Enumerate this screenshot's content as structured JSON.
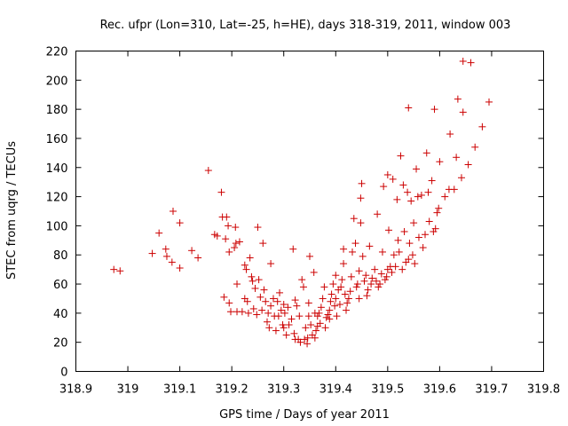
{
  "chart_data": {
    "type": "scatter",
    "title": "Rec. ufpr (Lon=310, Lat=-25, h=HE), days 318-319, 2011, window 003",
    "xlabel": "GPS time / Days of year 2011",
    "ylabel": "STEC from uqrg / TECUs",
    "xlim": [
      318.9,
      319.8
    ],
    "ylim": [
      0,
      220
    ],
    "x_ticks": [
      "318.9",
      "319",
      "319.1",
      "319.2",
      "319.3",
      "319.4",
      "319.5",
      "319.6",
      "319.7",
      "319.8"
    ],
    "y_ticks": [
      "0",
      "20",
      "40",
      "60",
      "80",
      "100",
      "120",
      "140",
      "160",
      "180",
      "200",
      "220"
    ],
    "marker": "+",
    "marker_color": "#cc0000",
    "grid": false,
    "series": [
      {
        "points": [
          [
            318.973,
            70
          ],
          [
            318.985,
            69
          ],
          [
            319.047,
            81
          ],
          [
            319.06,
            95
          ],
          [
            319.073,
            84
          ],
          [
            319.075,
            79
          ],
          [
            319.085,
            75
          ],
          [
            319.087,
            110
          ],
          [
            319.1,
            102
          ],
          [
            319.1,
            71
          ],
          [
            319.123,
            83
          ],
          [
            319.135,
            78
          ],
          [
            319.155,
            138
          ],
          [
            319.167,
            94
          ],
          [
            319.172,
            93
          ],
          [
            319.18,
            123
          ],
          [
            319.182,
            106
          ],
          [
            319.185,
            51
          ],
          [
            319.188,
            91
          ],
          [
            319.19,
            106
          ],
          [
            319.193,
            100
          ],
          [
            319.195,
            82
          ],
          [
            319.195,
            47
          ],
          [
            319.198,
            41
          ],
          [
            319.205,
            85
          ],
          [
            319.207,
            99
          ],
          [
            319.208,
            88
          ],
          [
            319.21,
            60
          ],
          [
            319.21,
            41
          ],
          [
            319.215,
            89
          ],
          [
            319.22,
            41
          ],
          [
            319.225,
            73
          ],
          [
            319.225,
            50
          ],
          [
            319.228,
            70
          ],
          [
            319.23,
            48
          ],
          [
            319.232,
            40
          ],
          [
            319.235,
            78
          ],
          [
            319.238,
            65
          ],
          [
            319.24,
            62
          ],
          [
            319.242,
            43
          ],
          [
            319.245,
            57
          ],
          [
            319.248,
            39
          ],
          [
            319.25,
            99
          ],
          [
            319.252,
            63
          ],
          [
            319.255,
            51
          ],
          [
            319.258,
            42
          ],
          [
            319.26,
            88
          ],
          [
            319.262,
            56
          ],
          [
            319.265,
            48
          ],
          [
            319.268,
            34
          ],
          [
            319.27,
            40
          ],
          [
            319.272,
            30
          ],
          [
            319.275,
            45
          ],
          [
            319.275,
            74
          ],
          [
            319.28,
            50
          ],
          [
            319.282,
            38
          ],
          [
            319.285,
            28
          ],
          [
            319.288,
            48
          ],
          [
            319.29,
            38
          ],
          [
            319.292,
            54
          ],
          [
            319.295,
            42
          ],
          [
            319.298,
            32
          ],
          [
            319.3,
            30
          ],
          [
            319.3,
            46
          ],
          [
            319.302,
            40
          ],
          [
            319.305,
            25
          ],
          [
            319.308,
            44
          ],
          [
            319.31,
            32
          ],
          [
            319.315,
            36
          ],
          [
            319.318,
            84
          ],
          [
            319.32,
            26
          ],
          [
            319.322,
            22
          ],
          [
            319.322,
            49
          ],
          [
            319.325,
            45
          ],
          [
            319.328,
            22
          ],
          [
            319.33,
            38
          ],
          [
            319.332,
            20
          ],
          [
            319.335,
            63
          ],
          [
            319.338,
            58
          ],
          [
            319.34,
            22
          ],
          [
            319.342,
            30
          ],
          [
            319.345,
            19
          ],
          [
            319.346,
            23
          ],
          [
            319.348,
            38
          ],
          [
            319.348,
            47
          ],
          [
            319.35,
            79
          ],
          [
            319.352,
            32
          ],
          [
            319.355,
            25
          ],
          [
            319.358,
            68
          ],
          [
            319.36,
            23
          ],
          [
            319.36,
            40
          ],
          [
            319.362,
            28
          ],
          [
            319.365,
            31
          ],
          [
            319.365,
            38
          ],
          [
            319.368,
            40
          ],
          [
            319.37,
            33
          ],
          [
            319.372,
            44
          ],
          [
            319.375,
            50
          ],
          [
            319.378,
            58
          ],
          [
            319.38,
            30
          ],
          [
            319.382,
            37
          ],
          [
            319.385,
            39
          ],
          [
            319.388,
            36
          ],
          [
            319.388,
            42
          ],
          [
            319.39,
            48
          ],
          [
            319.392,
            53
          ],
          [
            319.395,
            60
          ],
          [
            319.398,
            45
          ],
          [
            319.4,
            50
          ],
          [
            319.4,
            66
          ],
          [
            319.402,
            38
          ],
          [
            319.405,
            56
          ],
          [
            319.408,
            46
          ],
          [
            319.41,
            58
          ],
          [
            319.412,
            63
          ],
          [
            319.415,
            74
          ],
          [
            319.415,
            84
          ],
          [
            319.418,
            53
          ],
          [
            319.42,
            42
          ],
          [
            319.422,
            47
          ],
          [
            319.425,
            50
          ],
          [
            319.428,
            55
          ],
          [
            319.43,
            65
          ],
          [
            319.432,
            82
          ],
          [
            319.435,
            105
          ],
          [
            319.438,
            88
          ],
          [
            319.44,
            58
          ],
          [
            319.442,
            60
          ],
          [
            319.445,
            50
          ],
          [
            319.445,
            69
          ],
          [
            319.448,
            102
          ],
          [
            319.448,
            119
          ],
          [
            319.45,
            129
          ],
          [
            319.452,
            79
          ],
          [
            319.455,
            62
          ],
          [
            319.458,
            66
          ],
          [
            319.46,
            52
          ],
          [
            319.462,
            56
          ],
          [
            319.465,
            86
          ],
          [
            319.468,
            60
          ],
          [
            319.47,
            64
          ],
          [
            319.475,
            70
          ],
          [
            319.478,
            62
          ],
          [
            319.48,
            108
          ],
          [
            319.482,
            58
          ],
          [
            319.485,
            60
          ],
          [
            319.488,
            67
          ],
          [
            319.49,
            82
          ],
          [
            319.492,
            127
          ],
          [
            319.495,
            63
          ],
          [
            319.498,
            65
          ],
          [
            319.5,
            70
          ],
          [
            319.5,
            135
          ],
          [
            319.502,
            97
          ],
          [
            319.505,
            72
          ],
          [
            319.508,
            68
          ],
          [
            319.51,
            132
          ],
          [
            319.512,
            80
          ],
          [
            319.515,
            72
          ],
          [
            319.518,
            118
          ],
          [
            319.52,
            90
          ],
          [
            319.522,
            82
          ],
          [
            319.525,
            148
          ],
          [
            319.528,
            70
          ],
          [
            319.53,
            128
          ],
          [
            319.532,
            96
          ],
          [
            319.535,
            75
          ],
          [
            319.538,
            123
          ],
          [
            319.54,
            77
          ],
          [
            319.54,
            181
          ],
          [
            319.542,
            88
          ],
          [
            319.545,
            117
          ],
          [
            319.548,
            80
          ],
          [
            319.55,
            102
          ],
          [
            319.552,
            74
          ],
          [
            319.555,
            139
          ],
          [
            319.558,
            120
          ],
          [
            319.56,
            92
          ],
          [
            319.565,
            121
          ],
          [
            319.568,
            85
          ],
          [
            319.572,
            94
          ],
          [
            319.575,
            150
          ],
          [
            319.578,
            123
          ],
          [
            319.58,
            103
          ],
          [
            319.585,
            131
          ],
          [
            319.588,
            96
          ],
          [
            319.59,
            180
          ],
          [
            319.592,
            98
          ],
          [
            319.595,
            109
          ],
          [
            319.598,
            112
          ],
          [
            319.6,
            144
          ],
          [
            319.61,
            120
          ],
          [
            319.618,
            125
          ],
          [
            319.62,
            163
          ],
          [
            319.628,
            125
          ],
          [
            319.632,
            147
          ],
          [
            319.635,
            187
          ],
          [
            319.642,
            133
          ],
          [
            319.645,
            178
          ],
          [
            319.645,
            213
          ],
          [
            319.655,
            142
          ],
          [
            319.66,
            212
          ],
          [
            319.668,
            154
          ],
          [
            319.682,
            168
          ],
          [
            319.695,
            185
          ]
        ]
      }
    ]
  }
}
